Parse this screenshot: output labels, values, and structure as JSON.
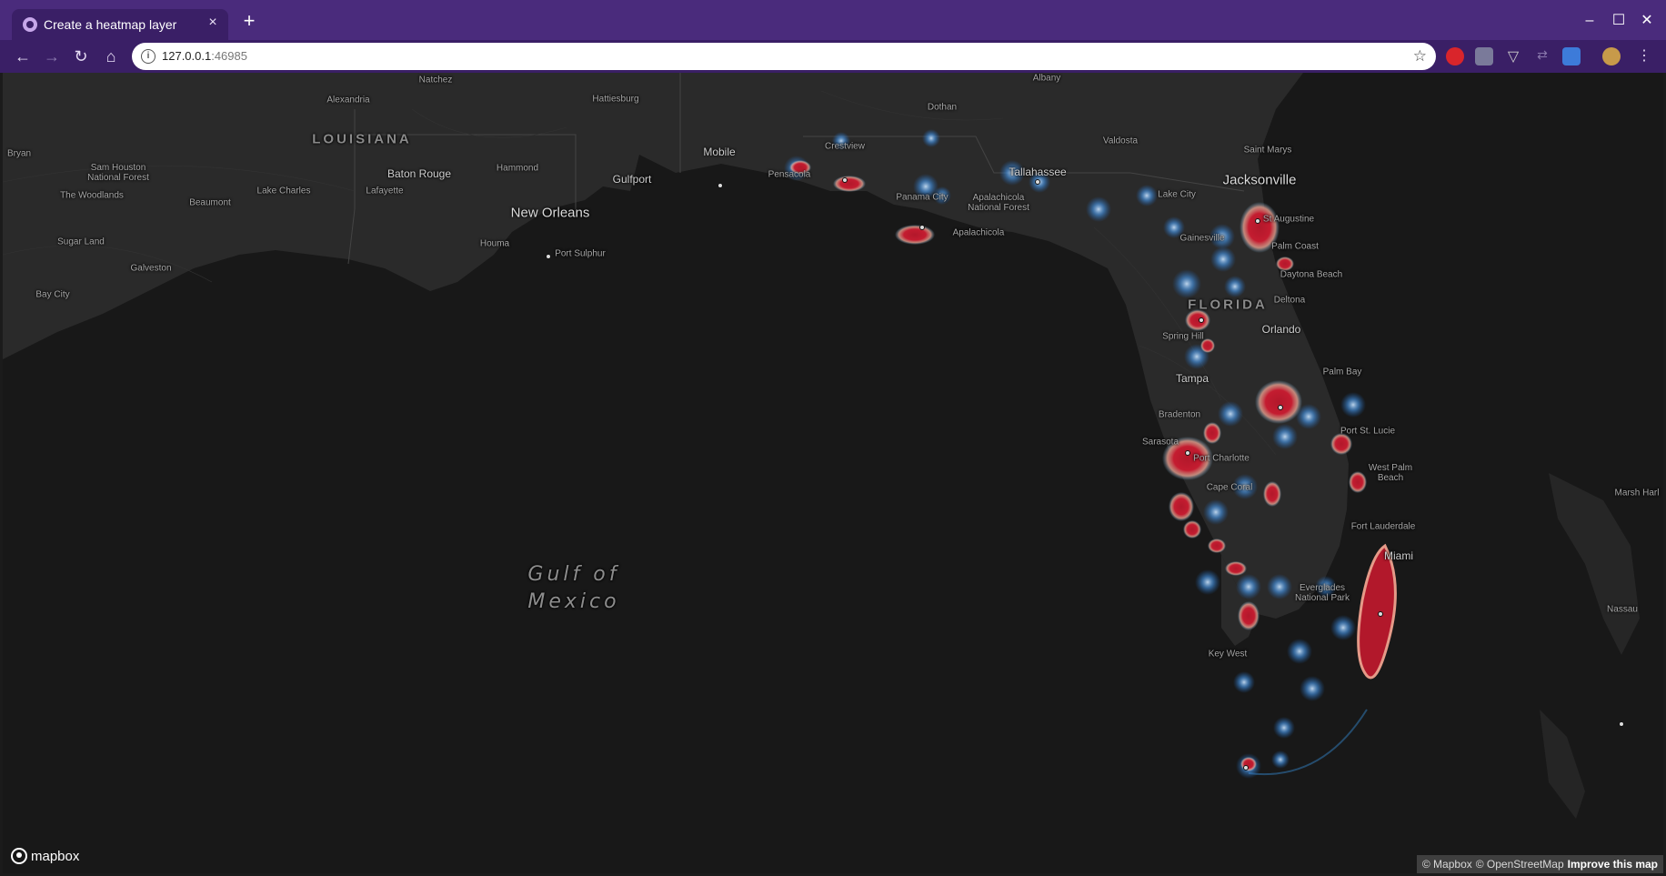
{
  "browser": {
    "tab_title": "Create a heatmap layer",
    "tab_close": "×",
    "new_tab": "+",
    "url_host": "127.0.0.1",
    "url_port": ":46985",
    "back_icon": "arrow-left-icon",
    "forward_icon": "arrow-right-icon",
    "reload_icon": "reload-icon",
    "home_icon": "home-icon"
  },
  "map": {
    "state_labels": [
      "LOUISIANA",
      "FLORIDA"
    ],
    "sea_label": "Gulf of\nMexico",
    "cities": {
      "natchez": "Natchez",
      "albany": "Albany",
      "alexandria": "Alexandria",
      "hattiesburg": "Hattiesburg",
      "dothan": "Dothan",
      "bryan": "Bryan",
      "valdosta": "Valdosta",
      "saint_marys": "Saint Marys",
      "mobile": "Mobile",
      "crestview": "Crestview",
      "sam_houston": "Sam Houston\nNational Forest",
      "hammond": "Hammond",
      "baton_rouge": "Baton Rouge",
      "gulfport": "Gulfport",
      "pensacola": "Pensacola",
      "tallahassee": "Tallahassee",
      "jacksonville": "Jacksonville",
      "the_woodlands": "The Woodlands",
      "lake_charles": "Lake Charles",
      "lafayette": "Lafayette",
      "panama_city": "Panama City",
      "apalachicola_nf": "Apalachicola\nNational Forest",
      "lake_city": "Lake City",
      "beaumont": "Beaumont",
      "new_orleans": "New Orleans",
      "st_augustine": "St Augustine",
      "apalachicola": "Apalachicola",
      "sugar_land": "Sugar Land",
      "houma": "Houma",
      "gainesville": "Gainesville",
      "palm_coast": "Palm Coast",
      "port_sulphur": "Port Sulphur",
      "galveston": "Galveston",
      "daytona_beach": "Daytona Beach",
      "bay_city": "Bay City",
      "deltona": "Deltona",
      "orlando": "Orlando",
      "spring_hill": "Spring Hill",
      "palm_bay": "Palm Bay",
      "tampa": "Tampa",
      "bradenton": "Bradenton",
      "port_st_lucie": "Port St. Lucie",
      "sarasota": "Sarasota",
      "port_charlotte": "Port Charlotte",
      "west_palm_beach": "West Palm\nBeach",
      "cape_coral": "Cape Coral",
      "marsh_harbour": "Marsh Harl",
      "fort_lauderdale": "Fort Lauderdale",
      "miami": "Miami",
      "everglades": "Everglades\nNational Park",
      "nassau": "Nassau",
      "key_west": "Key West"
    },
    "logo_text": "mapbox",
    "attribution": {
      "mapbox": "© Mapbox",
      "osm": "© OpenStreetMap",
      "improve": "Improve this map"
    }
  }
}
